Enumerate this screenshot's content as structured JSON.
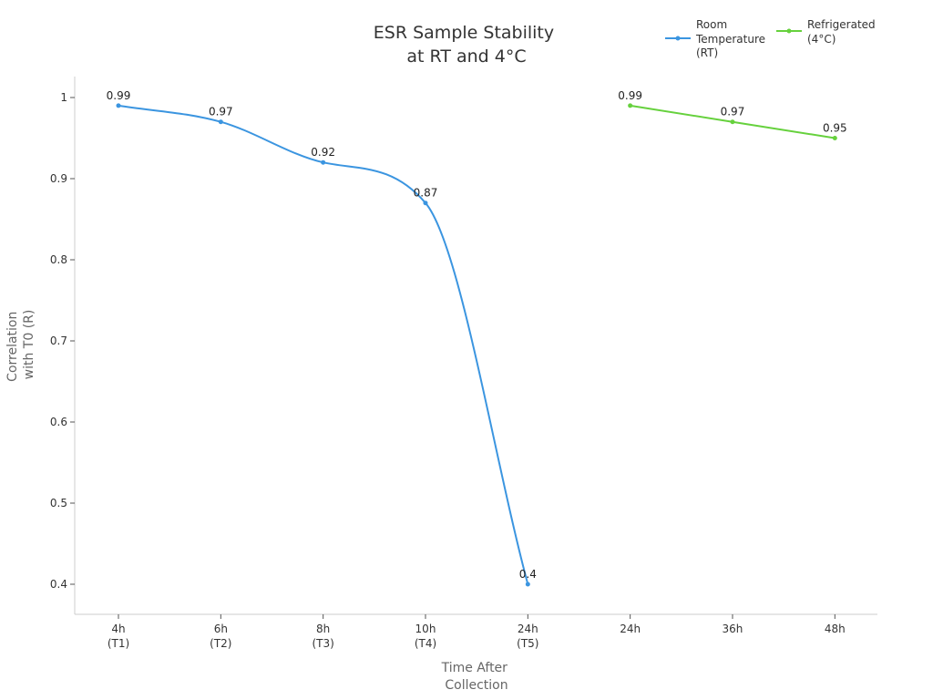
{
  "chart_data": {
    "type": "line",
    "title": [
      "ESR Sample Stability",
      "at RT and 4°C"
    ],
    "xlabel": [
      "Time After",
      "Collection"
    ],
    "ylabel": [
      "Correlation",
      "with T0 (R)"
    ],
    "categories": [
      [
        "4h",
        "(T1)"
      ],
      [
        "6h",
        "(T2)"
      ],
      [
        "8h",
        "(T3)"
      ],
      [
        "10h",
        "(T4)"
      ],
      [
        "24h",
        "(T5)"
      ],
      [
        "24h"
      ],
      [
        "36h"
      ],
      [
        "48h"
      ]
    ],
    "y_ticks": [
      "0.4",
      "0.5",
      "0.6",
      "0.7",
      "0.8",
      "0.9",
      "1"
    ],
    "ylim": [
      0.4,
      1.0
    ],
    "series": [
      {
        "name": [
          "Room",
          "Temperature",
          "(RT)"
        ],
        "color": "#3b95e0",
        "smooth": true,
        "points": [
          {
            "x": 0,
            "y": 0.99,
            "label": "0.99"
          },
          {
            "x": 1,
            "y": 0.97,
            "label": "0.97"
          },
          {
            "x": 2,
            "y": 0.92,
            "label": "0.92"
          },
          {
            "x": 3,
            "y": 0.87,
            "label": "0.87"
          },
          {
            "x": 4,
            "y": 0.4,
            "label": "0.4"
          }
        ]
      },
      {
        "name": [
          "Refrigerated",
          "(4°C)"
        ],
        "color": "#66d13d",
        "smooth": false,
        "points": [
          {
            "x": 5,
            "y": 0.99,
            "label": "0.99"
          },
          {
            "x": 6,
            "y": 0.97,
            "label": "0.97"
          },
          {
            "x": 7,
            "y": 0.95,
            "label": "0.95"
          }
        ]
      }
    ],
    "legend_position": "top-right",
    "grid": false
  }
}
